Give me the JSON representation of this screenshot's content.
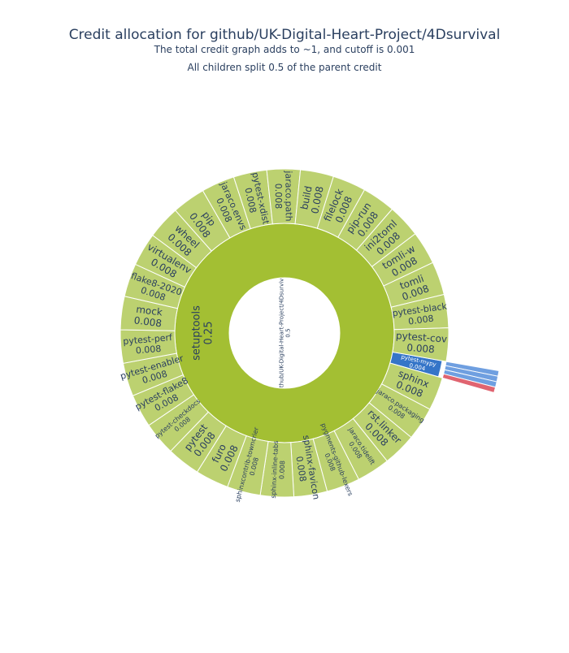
{
  "chart_data": {
    "type": "sunburst",
    "title": "Credit allocation for github/UK-Digital-Heart-Project/4Dsurvival",
    "subtitle_lines": [
      "The total credit graph adds to ~1, and cutoff is 0.001",
      "All children split 0.5 of the parent credit"
    ],
    "root": {
      "label": "github/UK-Digital-Heart-Project/4Dsurvival",
      "value": 0.5
    },
    "level1": [
      {
        "label": "setuptools",
        "value": 0.25
      }
    ],
    "level2": [
      {
        "label": "pytest-mypy",
        "value": 0.004,
        "highlight": true
      },
      {
        "label": "sphinx",
        "value": 0.008
      },
      {
        "label": "jaraco.packaging",
        "value": 0.008
      },
      {
        "label": "rst.linker",
        "value": 0.008
      },
      {
        "label": "jaraco.tidelift",
        "value": 0.008
      },
      {
        "label": "pygments-github-lexers",
        "value": 0.008
      },
      {
        "label": "sphinx-favicon",
        "value": 0.008
      },
      {
        "label": "sphinx-inline-tabs",
        "value": 0.008
      },
      {
        "label": "sphinxcontrib-towncrier",
        "value": 0.008
      },
      {
        "label": "furo",
        "value": 0.008
      },
      {
        "label": "pytest",
        "value": 0.008
      },
      {
        "label": "pytest-checkdocs",
        "value": 0.008
      },
      {
        "label": "pytest-flake8",
        "value": 0.008
      },
      {
        "label": "pytest-enabler",
        "value": 0.008
      },
      {
        "label": "pytest-perf",
        "value": 0.008
      },
      {
        "label": "mock",
        "value": 0.008
      },
      {
        "label": "flake8-2020",
        "value": 0.008
      },
      {
        "label": "virtualenv",
        "value": 0.008
      },
      {
        "label": "wheel",
        "value": 0.008
      },
      {
        "label": "pip",
        "value": 0.008
      },
      {
        "label": "jaraco.envs",
        "value": 0.008
      },
      {
        "label": "pytest-xdist",
        "value": 0.008
      },
      {
        "label": "jaraco.path",
        "value": 0.008
      },
      {
        "label": "build",
        "value": 0.008
      },
      {
        "label": "filelock",
        "value": 0.008
      },
      {
        "label": "pip-run",
        "value": 0.008
      },
      {
        "label": "ini2toml",
        "value": 0.008
      },
      {
        "label": "tomli-w",
        "value": 0.008
      },
      {
        "label": "tomli",
        "value": 0.008
      },
      {
        "label": "pytest-black",
        "value": 0.008
      },
      {
        "label": "pytest-cov",
        "value": 0.008
      }
    ],
    "level3_under_pytest_mypy": [
      {
        "value": 0.001,
        "color": "#6f9fe0"
      },
      {
        "value": 0.001,
        "color": "#6f9fe0"
      },
      {
        "value": 0.001,
        "color": "#6f9fe0"
      },
      {
        "value": 0.001,
        "color": "#e06470"
      }
    ],
    "colors": {
      "root": "#ffffff",
      "level1": "#a3bf33",
      "level2": "#bcd170",
      "highlight": "#3575c8",
      "text_dark": "#2a3f5f",
      "text_light": "#ffffff",
      "stroke": "#ffffff"
    }
  }
}
